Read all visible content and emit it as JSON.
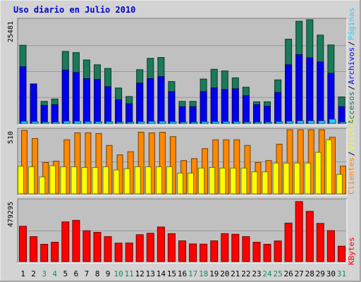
{
  "title": "Uso diario en Julio 2010",
  "colors": {
    "title": "#0000cc",
    "accesos": "#1a7a5a",
    "archivos": "#0000ee",
    "paginas": "#33ccff",
    "clientes": "#ff8800",
    "visitas": "#ffff00",
    "kbytes": "#ff0000",
    "weekend_label": "#1a8a5a",
    "plot_bg": "#c0c0c0",
    "frame_bg": "#d3d3d3"
  },
  "chart_data": [
    {
      "type": "bar",
      "panel": "top",
      "max_label": "25481",
      "ylim": [
        0,
        25481
      ],
      "categories": [
        "1",
        "2",
        "3",
        "4",
        "5",
        "6",
        "7",
        "8",
        "9",
        "10",
        "11",
        "12",
        "13",
        "14",
        "15",
        "16",
        "17",
        "18",
        "19",
        "20",
        "21",
        "22",
        "23",
        "24",
        "25",
        "26",
        "27",
        "28",
        "29",
        "30",
        "31"
      ],
      "weekend_days": [
        "3",
        "4",
        "10",
        "11",
        "17",
        "18",
        "24",
        "25",
        "31"
      ],
      "legend": [
        "Accesos",
        "Archivos",
        "Páginas"
      ],
      "series": [
        {
          "name": "Accesos",
          "values": [
            19200,
            7800,
            5400,
            6000,
            17700,
            17400,
            15600,
            14400,
            13500,
            8700,
            6600,
            13200,
            16000,
            16200,
            10300,
            5400,
            5400,
            10900,
            13300,
            12900,
            11200,
            8900,
            5300,
            5300,
            10700,
            20700,
            25100,
            25481,
            21700,
            19300,
            6500
          ]
        },
        {
          "name": "Archivos",
          "values": [
            13900,
            9700,
            4400,
            4600,
            13100,
            12500,
            11000,
            10800,
            9000,
            5800,
            4800,
            9900,
            11000,
            11500,
            7800,
            4100,
            4100,
            7800,
            8700,
            8300,
            8500,
            6800,
            4600,
            4200,
            7600,
            14400,
            16900,
            16100,
            15100,
            12300,
            4100
          ]
        },
        {
          "name": "Páginas",
          "values": [
            500,
            400,
            300,
            300,
            500,
            500,
            400,
            400,
            400,
            300,
            300,
            400,
            500,
            500,
            400,
            300,
            300,
            400,
            400,
            400,
            400,
            300,
            300,
            300,
            400,
            500,
            600,
            600,
            600,
            1000,
            300
          ]
        }
      ]
    },
    {
      "type": "bar",
      "panel": "middle",
      "max_label": "510",
      "ylim": [
        0,
        510
      ],
      "categories": [
        "1",
        "2",
        "3",
        "4",
        "5",
        "6",
        "7",
        "8",
        "9",
        "10",
        "11",
        "12",
        "13",
        "14",
        "15",
        "16",
        "17",
        "18",
        "19",
        "20",
        "21",
        "22",
        "23",
        "24",
        "25",
        "26",
        "27",
        "28",
        "29",
        "30",
        "31"
      ],
      "legend": [
        "Clientes",
        "Visitas"
      ],
      "series": [
        {
          "name": "Clientes",
          "values": [
            505,
            440,
            250,
            260,
            430,
            485,
            485,
            480,
            385,
            310,
            335,
            490,
            485,
            490,
            455,
            265,
            280,
            360,
            430,
            430,
            430,
            385,
            250,
            265,
            395,
            510,
            510,
            510,
            510,
            450,
            220
          ]
        },
        {
          "name": "Visitas",
          "values": [
            220,
            215,
            135,
            225,
            215,
            215,
            210,
            210,
            215,
            190,
            200,
            215,
            215,
            215,
            215,
            165,
            165,
            205,
            210,
            205,
            205,
            205,
            175,
            175,
            245,
            245,
            245,
            245,
            330,
            430,
            155
          ]
        }
      ]
    },
    {
      "type": "bar",
      "panel": "bottom",
      "max_label": "479295",
      "ylim": [
        0,
        479295
      ],
      "categories": [
        "1",
        "2",
        "3",
        "4",
        "5",
        "6",
        "7",
        "8",
        "9",
        "10",
        "11",
        "12",
        "13",
        "14",
        "15",
        "16",
        "17",
        "18",
        "19",
        "20",
        "21",
        "22",
        "23",
        "24",
        "25",
        "26",
        "27",
        "28",
        "29",
        "30",
        "31"
      ],
      "legend": [
        "KBytes"
      ],
      "series": [
        {
          "name": "KBytes",
          "values": [
            276000,
            195000,
            135000,
            151000,
            310000,
            322000,
            241000,
            228000,
            195000,
            144000,
            145000,
            210000,
            221000,
            270000,
            218000,
            162000,
            138000,
            136000,
            162000,
            218000,
            213000,
            195000,
            151000,
            135000,
            161000,
            301000,
            469000,
            392000,
            298000,
            242000,
            120000
          ]
        }
      ]
    }
  ]
}
